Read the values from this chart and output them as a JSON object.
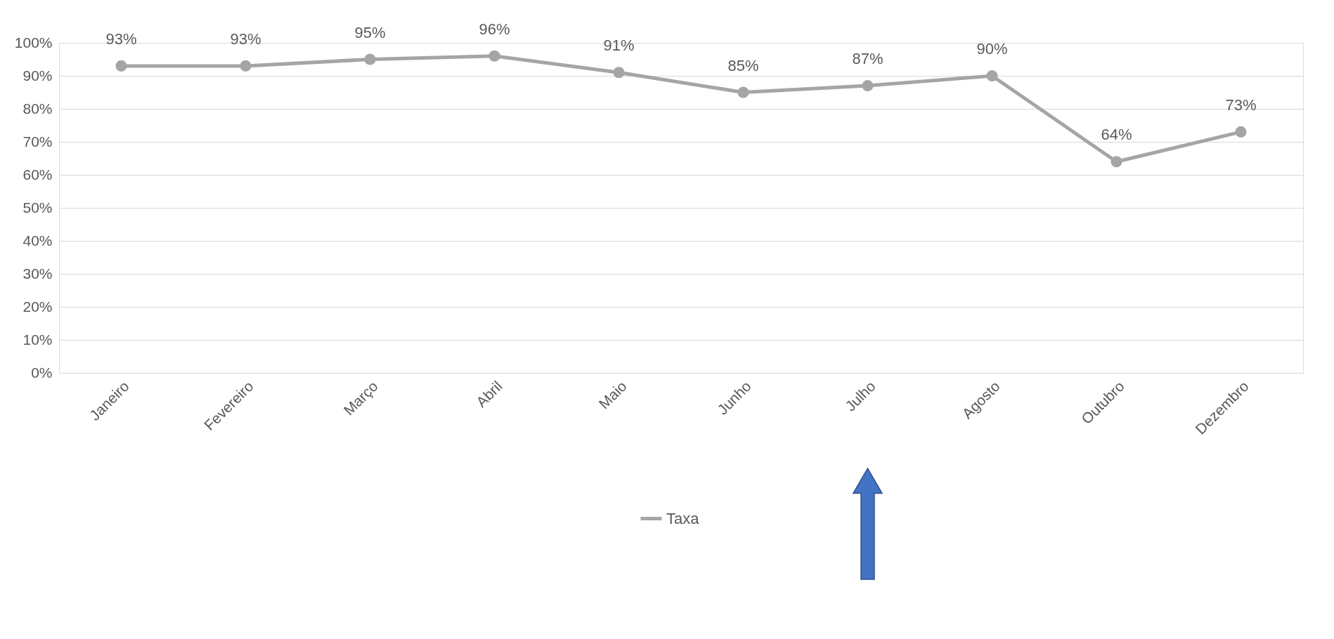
{
  "chart_data": {
    "type": "line",
    "categories": [
      "Janeiro",
      "Fevereiro",
      "Março",
      "Abril",
      "Maio",
      "Junho",
      "Julho",
      "Agosto",
      "Outubro",
      "Dezembro"
    ],
    "series": [
      {
        "name": "Taxa",
        "color": "#a5a5a5",
        "values": [
          93,
          93,
          95,
          96,
          91,
          85,
          87,
          90,
          64,
          73
        ],
        "value_labels": [
          "93%",
          "93%",
          "95%",
          "96%",
          "91%",
          "85%",
          "87%",
          "90%",
          "64%",
          "73%"
        ]
      }
    ],
    "ylim": [
      0,
      100
    ],
    "yticks": [
      {
        "value": 0,
        "label": "0%"
      },
      {
        "value": 10,
        "label": "10%"
      },
      {
        "value": 20,
        "label": "20%"
      },
      {
        "value": 30,
        "label": "30%"
      },
      {
        "value": 40,
        "label": "40%"
      },
      {
        "value": 50,
        "label": "50%"
      },
      {
        "value": 60,
        "label": "60%"
      },
      {
        "value": 70,
        "label": "70%"
      },
      {
        "value": 80,
        "label": "80%"
      },
      {
        "value": 90,
        "label": "90%"
      },
      {
        "value": 100,
        "label": "100%"
      }
    ],
    "grid": "y",
    "legend": "bottom",
    "marker": "circle",
    "line_style": "solid"
  }
}
